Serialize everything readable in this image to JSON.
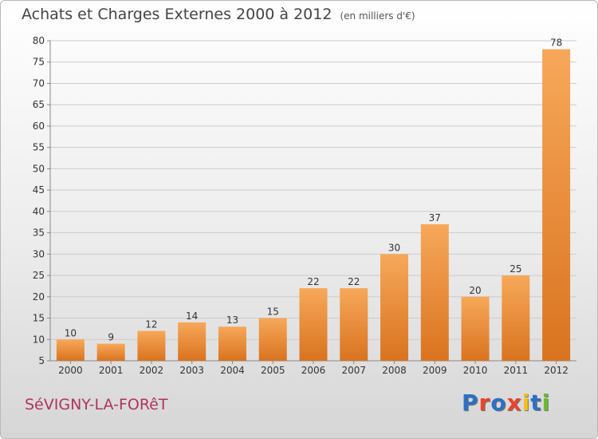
{
  "header": {
    "title": "Achats et Charges Externes 2000 à 2012",
    "unit": "(en milliers d'€)"
  },
  "footer": {
    "commune": "SéVIGNY-LA-FORêT",
    "logo_letters": [
      "P",
      "r",
      "o",
      "x",
      "i",
      "t",
      "i"
    ],
    "logo_colors": [
      "#2e6fc3",
      "#e8442c",
      "#2e6fc3",
      "#e8442c",
      "#f2c21a",
      "#2e6fc3",
      "#6cbb2b"
    ]
  },
  "colors": {
    "bar_light": "#f7a85a",
    "bar_dark": "#d9731f",
    "grid": "#cccccc",
    "axis": "#888888",
    "commune_text": "#b1335e"
  },
  "chart_data": {
    "type": "bar",
    "title": "Achats et Charges Externes 2000 à 2012",
    "subtitle": "(en milliers d'€)",
    "xlabel": "",
    "ylabel": "",
    "categories": [
      "2000",
      "2001",
      "2002",
      "2003",
      "2004",
      "2005",
      "2006",
      "2007",
      "2008",
      "2009",
      "2010",
      "2011",
      "2012"
    ],
    "values": [
      10,
      9,
      12,
      14,
      13,
      15,
      22,
      22,
      30,
      37,
      20,
      25,
      78
    ],
    "ylim": [
      5,
      80
    ],
    "yticks": [
      5,
      10,
      15,
      20,
      25,
      30,
      35,
      40,
      45,
      50,
      55,
      60,
      65,
      70,
      75,
      80
    ],
    "grid": true,
    "legend": "none"
  }
}
